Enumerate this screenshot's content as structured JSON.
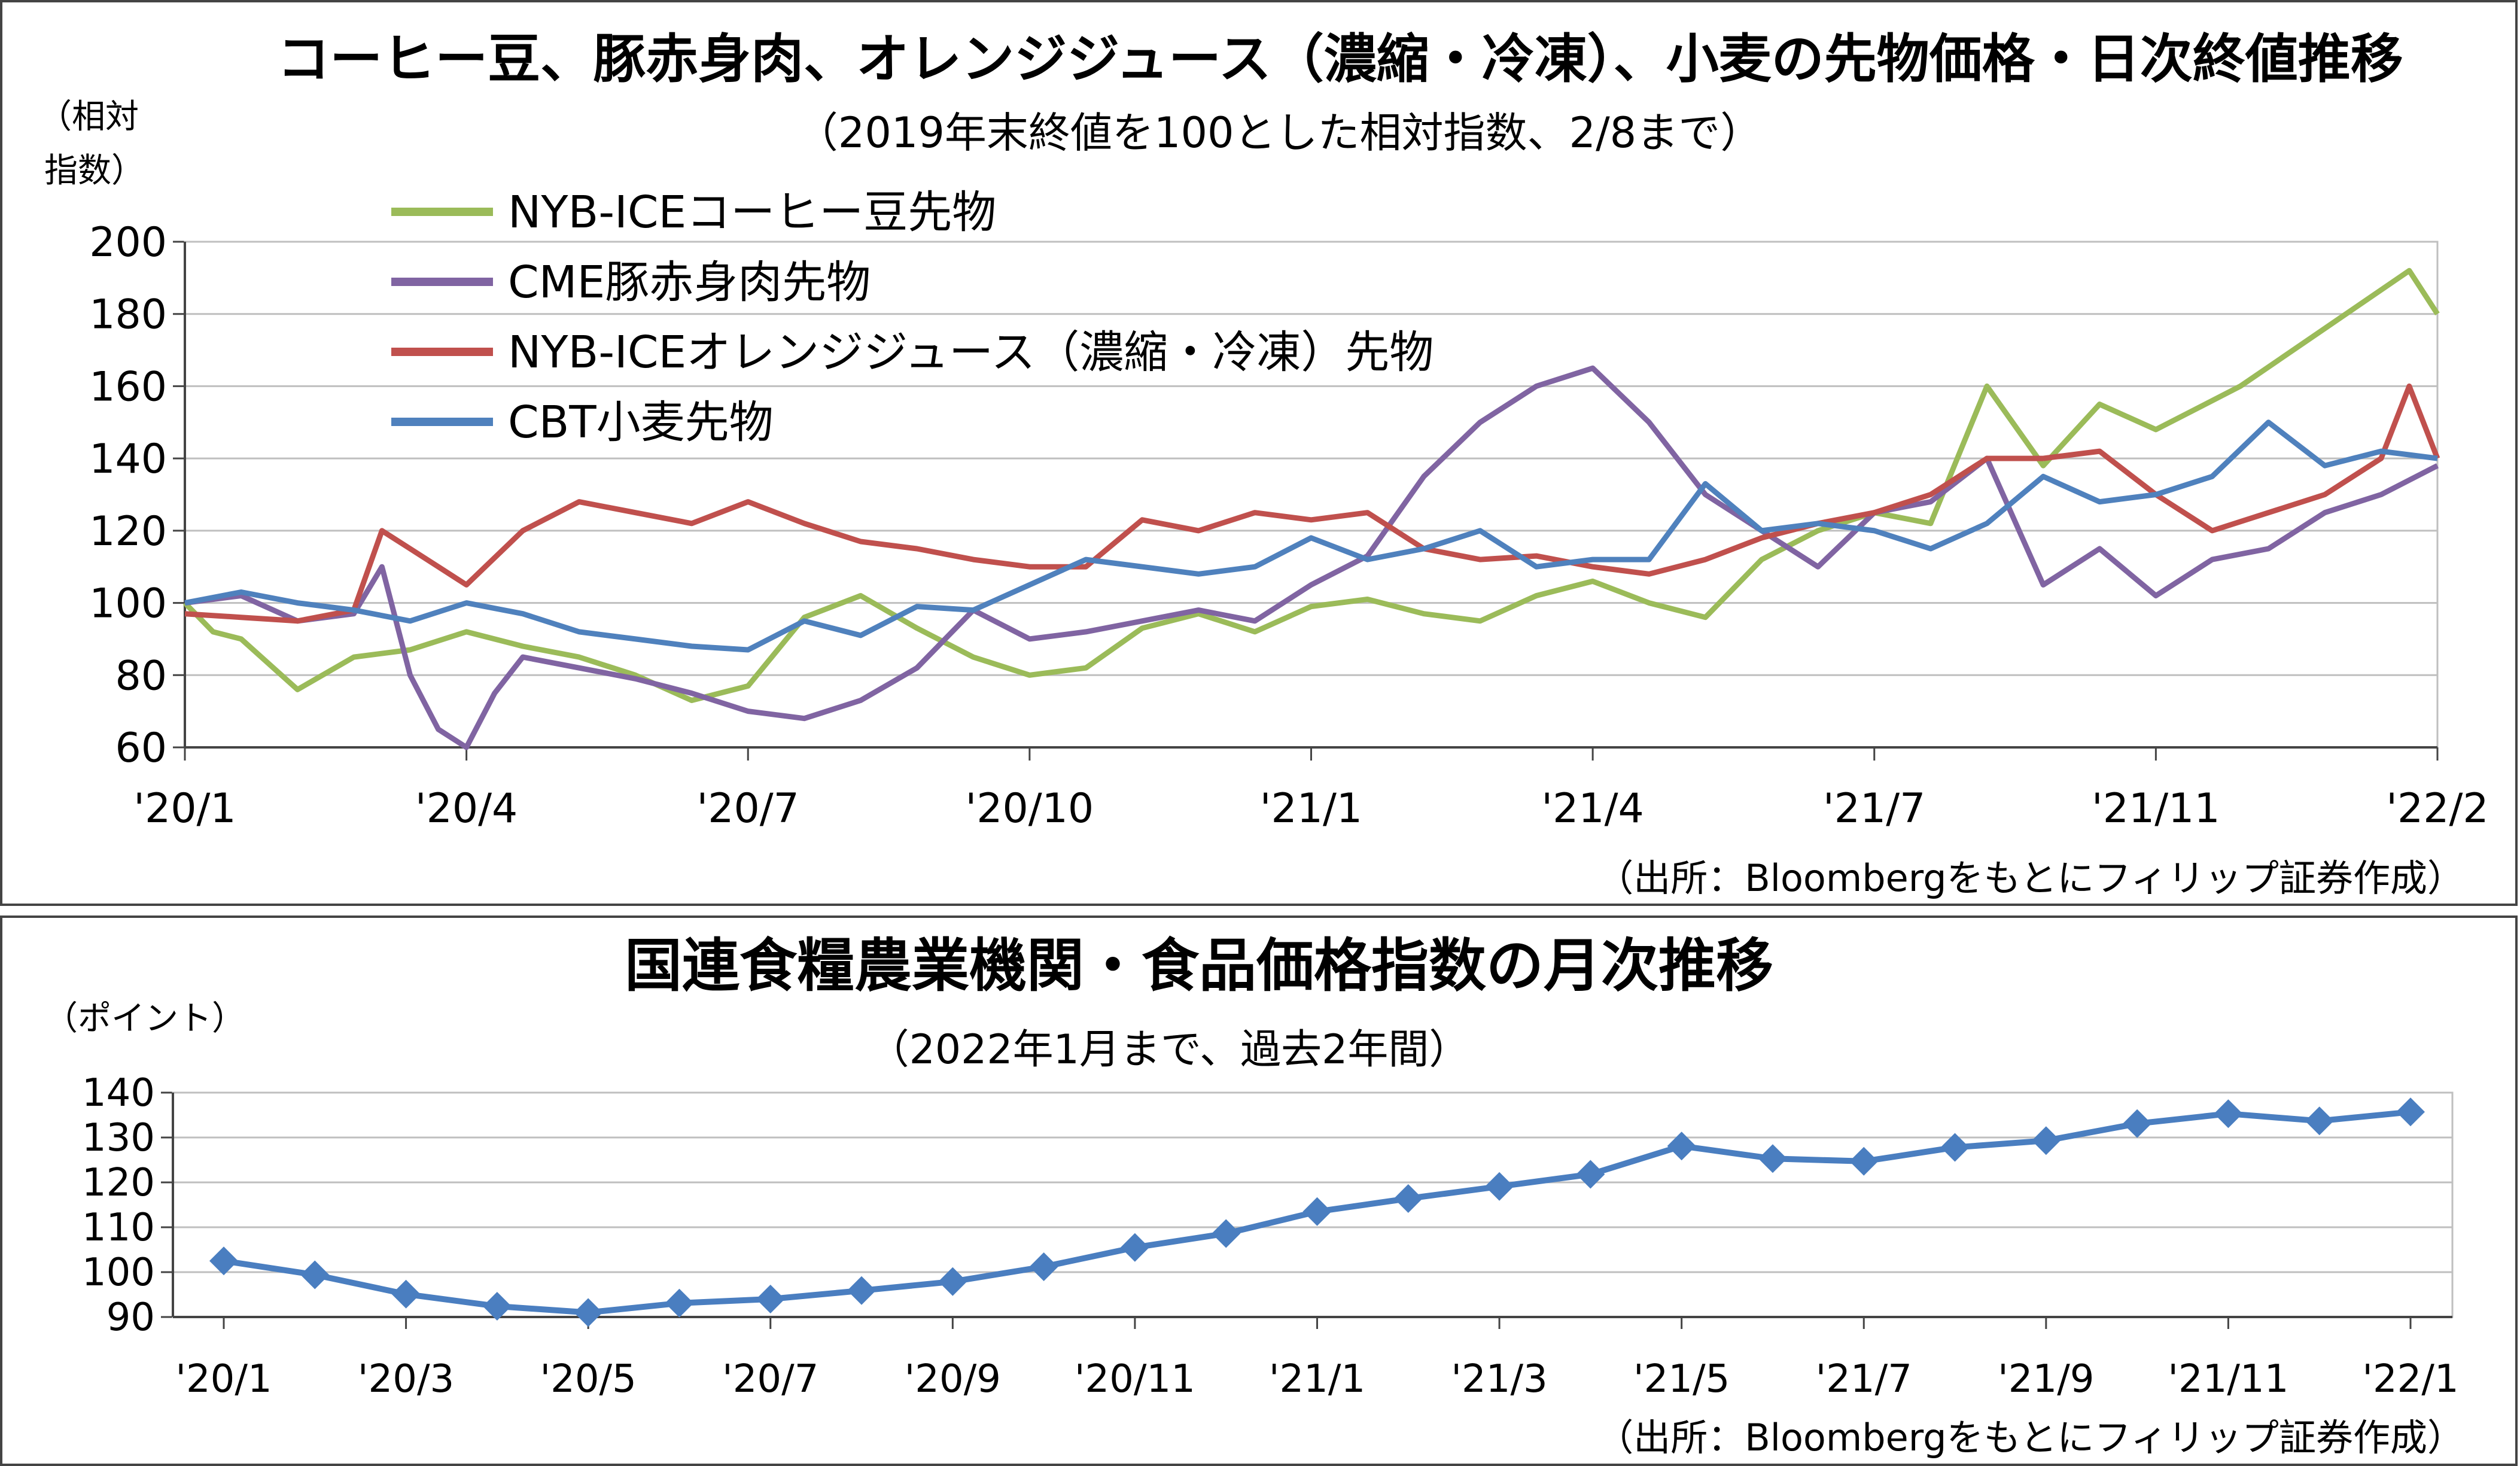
{
  "chart_data": [
    {
      "type": "line",
      "title": "コーヒー豆、豚赤身肉、オレンジジュース（濃縮・冷凍）、小麦の先物価格・日次終値推移",
      "subtitle": "（2019年末終値を100とした相対指数、2/8まで）",
      "ylabel_line1": "（相対",
      "ylabel_line2": "指数）",
      "ylim": [
        60,
        200
      ],
      "yticks": [
        "60",
        "80",
        "100",
        "120",
        "140",
        "160",
        "180",
        "200"
      ],
      "xticks": [
        "'20/1",
        "'20/4",
        "'20/7",
        "'20/10",
        "'21/1",
        "'21/4",
        "'21/7",
        "'21/11",
        "'22/2"
      ],
      "source": "（出所：Bloombergをもとにフィリップ証券作成）",
      "grid": true,
      "legend_position": "top-left",
      "series": [
        {
          "name": "NYB-ICEコーヒー豆先物",
          "color": "#9BBB59",
          "x": [
            0,
            0.1,
            0.2,
            0.4,
            0.6,
            0.8,
            1.0,
            1.2,
            1.4,
            1.6,
            1.8,
            2.0,
            2.2,
            2.4,
            2.6,
            2.8,
            3.0,
            3.2,
            3.4,
            3.6,
            3.8,
            4.0,
            4.2,
            4.4,
            4.6,
            4.8,
            5.0,
            5.2,
            5.4,
            5.6,
            5.8,
            6.0,
            6.2,
            6.4,
            6.6,
            6.8,
            7.0,
            7.3,
            7.6,
            7.9,
            8.0
          ],
          "values": [
            100,
            92,
            90,
            76,
            85,
            87,
            92,
            88,
            85,
            80,
            73,
            77,
            96,
            102,
            93,
            85,
            80,
            82,
            93,
            97,
            92,
            99,
            101,
            97,
            95,
            102,
            106,
            100,
            96,
            112,
            120,
            125,
            122,
            160,
            138,
            155,
            148,
            160,
            176,
            192,
            180
          ]
        },
        {
          "name": "CME豚赤身肉先物",
          "color": "#8064A2",
          "x": [
            0,
            0.2,
            0.4,
            0.6,
            0.7,
            0.8,
            0.9,
            1.0,
            1.1,
            1.2,
            1.4,
            1.6,
            1.8,
            2.0,
            2.2,
            2.4,
            2.6,
            2.8,
            3.0,
            3.2,
            3.4,
            3.6,
            3.8,
            4.0,
            4.2,
            4.4,
            4.6,
            4.8,
            5.0,
            5.2,
            5.4,
            5.6,
            5.8,
            6.0,
            6.2,
            6.4,
            6.6,
            6.8,
            7.0,
            7.2,
            7.4,
            7.6,
            7.8,
            8.0
          ],
          "values": [
            100,
            102,
            95,
            97,
            110,
            80,
            65,
            60,
            75,
            85,
            82,
            79,
            75,
            70,
            68,
            73,
            82,
            98,
            90,
            92,
            95,
            98,
            95,
            105,
            113,
            135,
            150,
            160,
            165,
            150,
            130,
            120,
            110,
            125,
            128,
            140,
            105,
            115,
            102,
            112,
            115,
            125,
            130,
            138
          ]
        },
        {
          "name": "NYB-ICEオレンジジュース（濃縮・冷凍）先物",
          "color": "#C0504D",
          "x": [
            0,
            0.2,
            0.4,
            0.6,
            0.7,
            0.8,
            0.9,
            1.0,
            1.2,
            1.4,
            1.6,
            1.8,
            2.0,
            2.2,
            2.4,
            2.6,
            2.8,
            3.0,
            3.2,
            3.4,
            3.6,
            3.8,
            4.0,
            4.2,
            4.4,
            4.6,
            4.8,
            5.0,
            5.2,
            5.4,
            5.6,
            5.8,
            6.0,
            6.2,
            6.4,
            6.6,
            6.8,
            7.0,
            7.2,
            7.4,
            7.6,
            7.8,
            7.9,
            8.0
          ],
          "values": [
            97,
            96,
            95,
            98,
            120,
            115,
            110,
            105,
            120,
            128,
            125,
            122,
            128,
            122,
            117,
            115,
            112,
            110,
            110,
            123,
            120,
            125,
            123,
            125,
            115,
            112,
            113,
            110,
            108,
            112,
            118,
            122,
            125,
            130,
            140,
            140,
            142,
            130,
            120,
            125,
            130,
            140,
            160,
            140
          ]
        },
        {
          "name": "CBT小麦先物",
          "color": "#4F81BD",
          "x": [
            0,
            0.2,
            0.4,
            0.6,
            0.8,
            1.0,
            1.2,
            1.4,
            1.6,
            1.8,
            2.0,
            2.2,
            2.4,
            2.6,
            2.8,
            3.0,
            3.2,
            3.4,
            3.6,
            3.8,
            4.0,
            4.2,
            4.4,
            4.6,
            4.8,
            5.0,
            5.2,
            5.4,
            5.6,
            5.8,
            6.0,
            6.2,
            6.4,
            6.6,
            6.8,
            7.0,
            7.2,
            7.4,
            7.6,
            7.8,
            8.0
          ],
          "values": [
            100,
            103,
            100,
            98,
            95,
            100,
            97,
            92,
            90,
            88,
            87,
            95,
            91,
            99,
            98,
            105,
            112,
            110,
            108,
            110,
            118,
            112,
            115,
            120,
            110,
            112,
            112,
            133,
            120,
            122,
            120,
            115,
            122,
            135,
            128,
            130,
            135,
            150,
            138,
            142,
            140
          ]
        }
      ]
    },
    {
      "type": "line",
      "title": "国連食糧農業機関・食品価格指数の月次推移",
      "subtitle": "（2022年1月まで、過去2年間）",
      "ylabel": "（ポイント）",
      "ylim": [
        90,
        140
      ],
      "yticks": [
        "90",
        "100",
        "110",
        "120",
        "130",
        "140"
      ],
      "categories": [
        "'20/1",
        "'20/2",
        "'20/3",
        "'20/4",
        "'20/5",
        "'20/6",
        "'20/7",
        "'20/8",
        "'20/9",
        "'20/10",
        "'20/11",
        "'20/12",
        "'21/1",
        "'21/2",
        "'21/3",
        "'21/4",
        "'21/5",
        "'21/6",
        "'21/7",
        "'21/8",
        "'21/9",
        "'21/10",
        "'21/11",
        "'21/12",
        "'22/1"
      ],
      "xtick_labels": [
        "'20/1",
        "'20/3",
        "'20/5",
        "'20/7",
        "'20/9",
        "'20/11",
        "'21/1",
        "'21/3",
        "'21/5",
        "'21/7",
        "'21/9",
        "'21/11",
        "'22/1"
      ],
      "source": "（出所：Bloombergをもとにフィリップ証券作成）",
      "grid": true,
      "series": [
        {
          "color": "#4A7EC0",
          "values": [
            102.5,
            99.4,
            95.1,
            92.4,
            91.0,
            93.1,
            94.0,
            95.9,
            97.9,
            101.2,
            105.5,
            108.6,
            113.5,
            116.4,
            119.1,
            121.8,
            128.1,
            125.3,
            124.7,
            127.8,
            129.3,
            133.1,
            135.3,
            133.7,
            135.7
          ]
        }
      ]
    }
  ]
}
